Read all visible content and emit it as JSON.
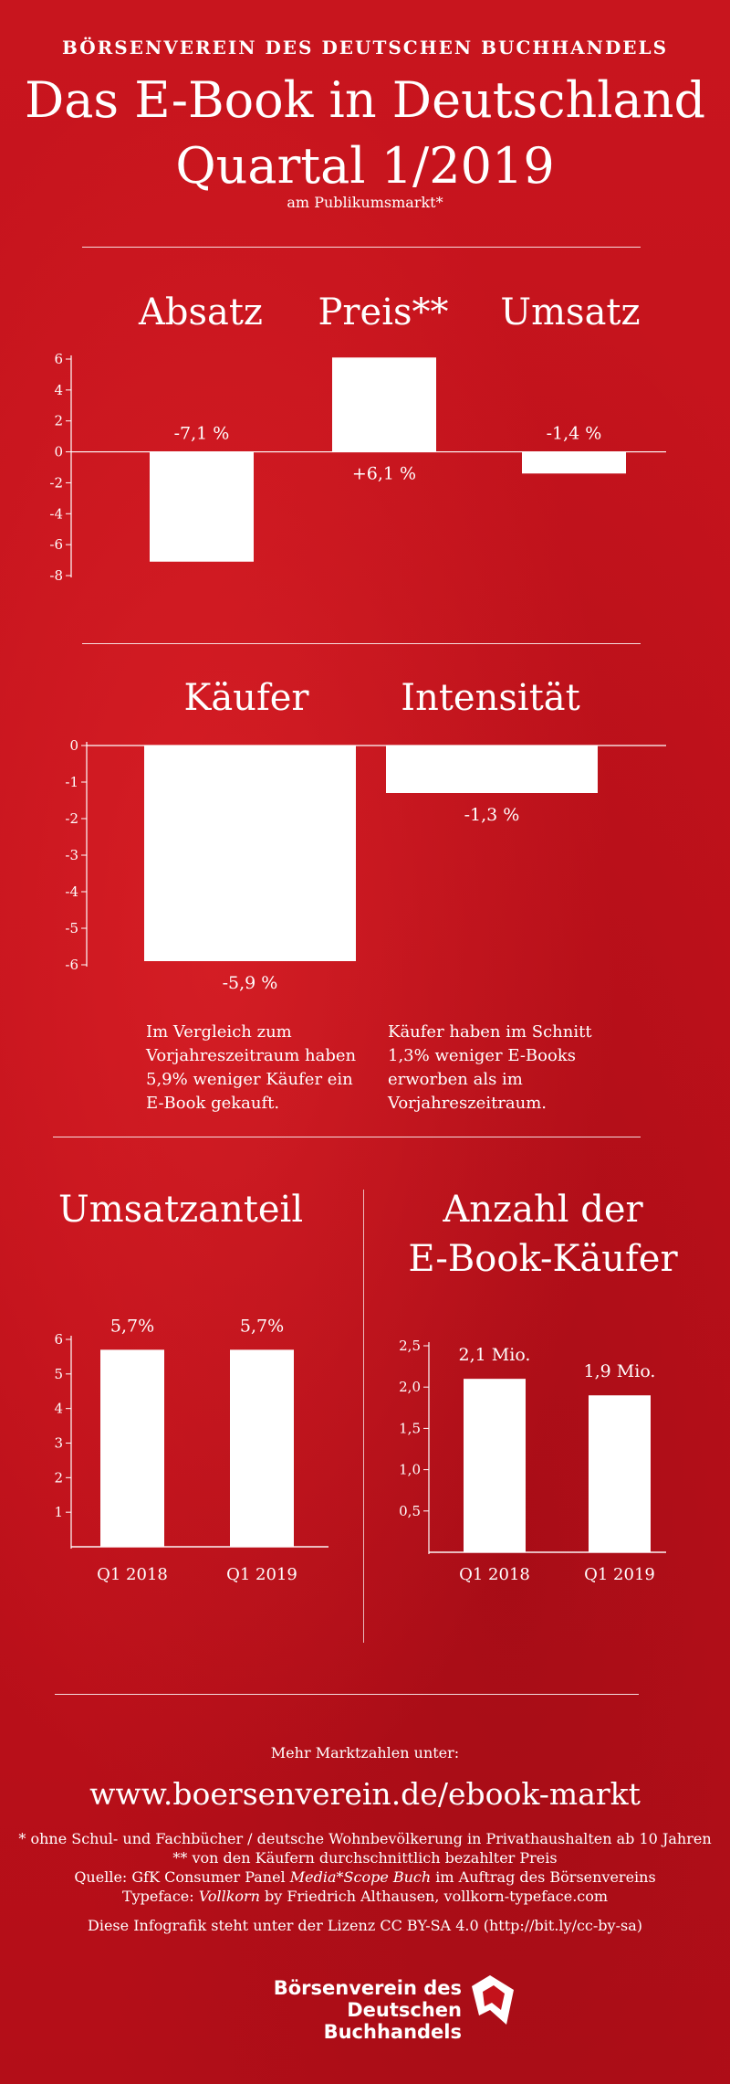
{
  "header": {
    "kicker": "BÖRSENVEREIN DES DEUTSCHEN BUCHHANDELS",
    "title_line1": "Das E-Book in Deutschland",
    "title_line2": "Quartal 1/2019",
    "subtitle": "am Publikumsmarkt*"
  },
  "chart_data": [
    {
      "type": "bar",
      "categories": [
        "Absatz",
        "Preis**",
        "Umsatz"
      ],
      "values": [
        -7.1,
        6.1,
        -1.4
      ],
      "data_labels": [
        "-7,1 %",
        "+6,1 %",
        "-1,4 %"
      ],
      "ylim": [
        -8,
        6
      ],
      "yticks": [
        6,
        4,
        2,
        0,
        -2,
        -4,
        -6,
        -8
      ],
      "ytick_labels": [
        "6",
        "4",
        "2",
        "0",
        "-2",
        "-4",
        "-6",
        "-8"
      ],
      "grid": false
    },
    {
      "type": "bar",
      "categories": [
        "Käufer",
        "Intensität"
      ],
      "values": [
        -5.9,
        -1.3
      ],
      "data_labels": [
        "-5,9 %",
        "-1,3 %"
      ],
      "ylim": [
        -6,
        0
      ],
      "yticks": [
        0,
        -1,
        -2,
        -3,
        -4,
        -5,
        -6
      ],
      "ytick_labels": [
        "0",
        "-1",
        "-2",
        "-3",
        "-4",
        "-5",
        "-6"
      ],
      "notes": [
        "Im Vergleich zum Vorjahreszeitraum haben 5,9% weniger Käufer ein E-Book gekauft.",
        "Käufer haben im Schnitt 1,3% weniger E-Books erworben als im Vorjahreszeitraum."
      ],
      "grid": false
    },
    {
      "type": "bar",
      "title": "Umsatzanteil",
      "categories": [
        "Q1 2018",
        "Q1 2019"
      ],
      "values": [
        5.7,
        5.7
      ],
      "data_labels": [
        "5,7%",
        "5,7%"
      ],
      "ylim": [
        0,
        6
      ],
      "yticks": [
        1,
        2,
        3,
        4,
        5,
        6
      ],
      "ytick_labels": [
        "1",
        "2",
        "3",
        "4",
        "5",
        "6"
      ],
      "grid": false
    },
    {
      "type": "bar",
      "title": "Anzahl der E-Book-Käufer",
      "title_lines": [
        "Anzahl der",
        "E-Book-Käufer"
      ],
      "categories": [
        "Q1 2018",
        "Q1 2019"
      ],
      "values": [
        2.1,
        1.9
      ],
      "data_labels": [
        "2,1 Mio.",
        "1,9 Mio."
      ],
      "ylim": [
        0,
        2.5
      ],
      "yticks": [
        0.5,
        1.0,
        1.5,
        2.0,
        2.5
      ],
      "ytick_labels": [
        "0,5",
        "1,0",
        "1,5",
        "2,0",
        "2,5"
      ],
      "grid": false
    }
  ],
  "footer": {
    "more_label": "Mehr Marktzahlen unter:",
    "url": "www.boersenverein.de/ebook-markt",
    "note1": "* ohne Schul- und Fachbücher / deutsche Wohnbevölkerung in Privathaushalten ab 10 Jahren",
    "note2": "** von den Käufern durchschnittlich bezahlter Preis",
    "source_prefix": "Quelle: GfK Consumer Panel ",
    "source_italic": "Media*Scope Buch",
    "source_suffix": " im Auftrag des Börsenvereins",
    "typeface_prefix": "Typeface: ",
    "typeface_italic": "Vollkorn",
    "typeface_suffix": " by Friedrich Althausen, vollkorn-typeface.com",
    "license": "Diese Infografik steht unter der Lizenz CC BY-SA 4.0 (http://bit.ly/cc-by-sa)",
    "logo_line1": "Börsenverein des",
    "logo_line2": "Deutschen Buchhandels"
  },
  "colors": {
    "background": "#c4121b",
    "foreground": "#ffffff"
  }
}
